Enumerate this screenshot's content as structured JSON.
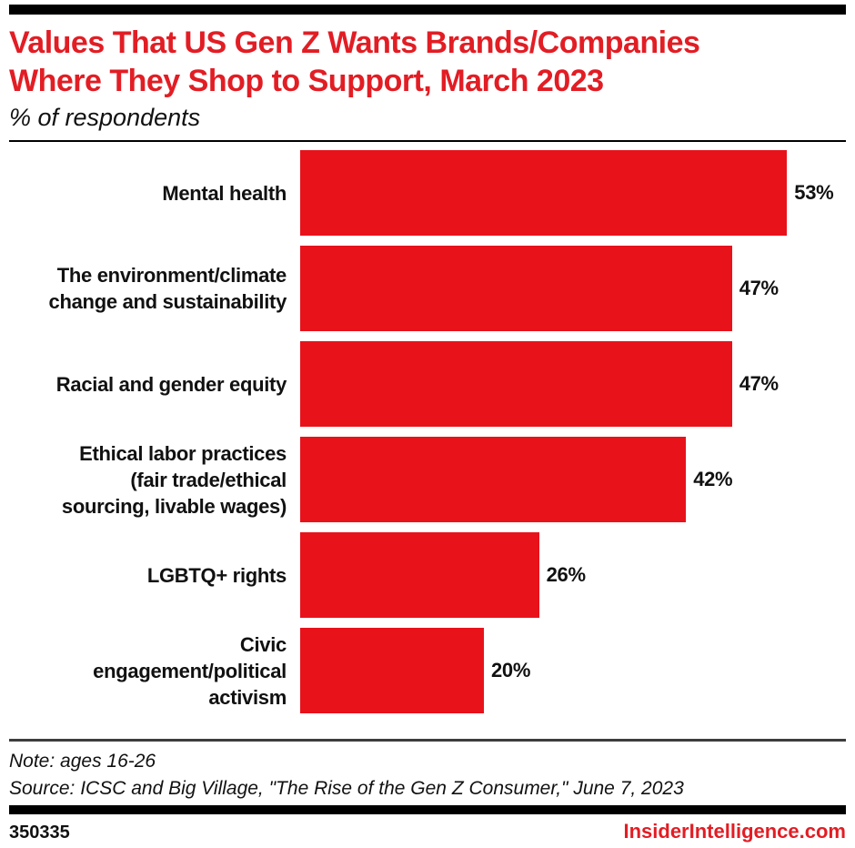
{
  "header": {
    "title_line1": "Values That US Gen Z Wants Brands/Companies",
    "title_line2": "Where They Shop to Support, March 2023",
    "subtitle": "% of respondents",
    "title_color": "#e21d24"
  },
  "chart_data": {
    "type": "bar",
    "orientation": "horizontal",
    "title": "Values That US Gen Z Wants Brands/Companies Where They Shop to Support, March 2023",
    "subtitle": "% of respondents",
    "xlabel": "",
    "ylabel": "",
    "xlim": [
      0,
      57
    ],
    "grid": false,
    "legend": false,
    "bar_color": "#e8121b",
    "categories": [
      "Mental health",
      "The environment/climate change and sustainability",
      "Racial and gender equity",
      "Ethical labor practices (fair trade/ethical sourcing, livable wages)",
      "LGBTQ+ rights",
      "Civic engagement/political activism"
    ],
    "label_lines": [
      [
        "Mental health"
      ],
      [
        "The environment/climate",
        "change and sustainability"
      ],
      [
        "Racial and gender equity"
      ],
      [
        "Ethical labor practices",
        "(fair trade/ethical",
        "sourcing, livable wages)"
      ],
      [
        "LGBTQ+ rights"
      ],
      [
        "Civic",
        "engagement/political",
        "activism"
      ]
    ],
    "values": [
      53,
      47,
      47,
      42,
      26,
      20
    ],
    "value_labels": [
      "53%",
      "47%",
      "47%",
      "42%",
      "26%",
      "20%"
    ]
  },
  "footer": {
    "note": "Note: ages 16-26",
    "source": "Source: ICSC and Big Village, \"The Rise of the Gen Z Consumer,\" June 7, 2023",
    "chart_id": "350335",
    "site": "InsiderIntelligence.com",
    "site_color": "#e21d24"
  }
}
